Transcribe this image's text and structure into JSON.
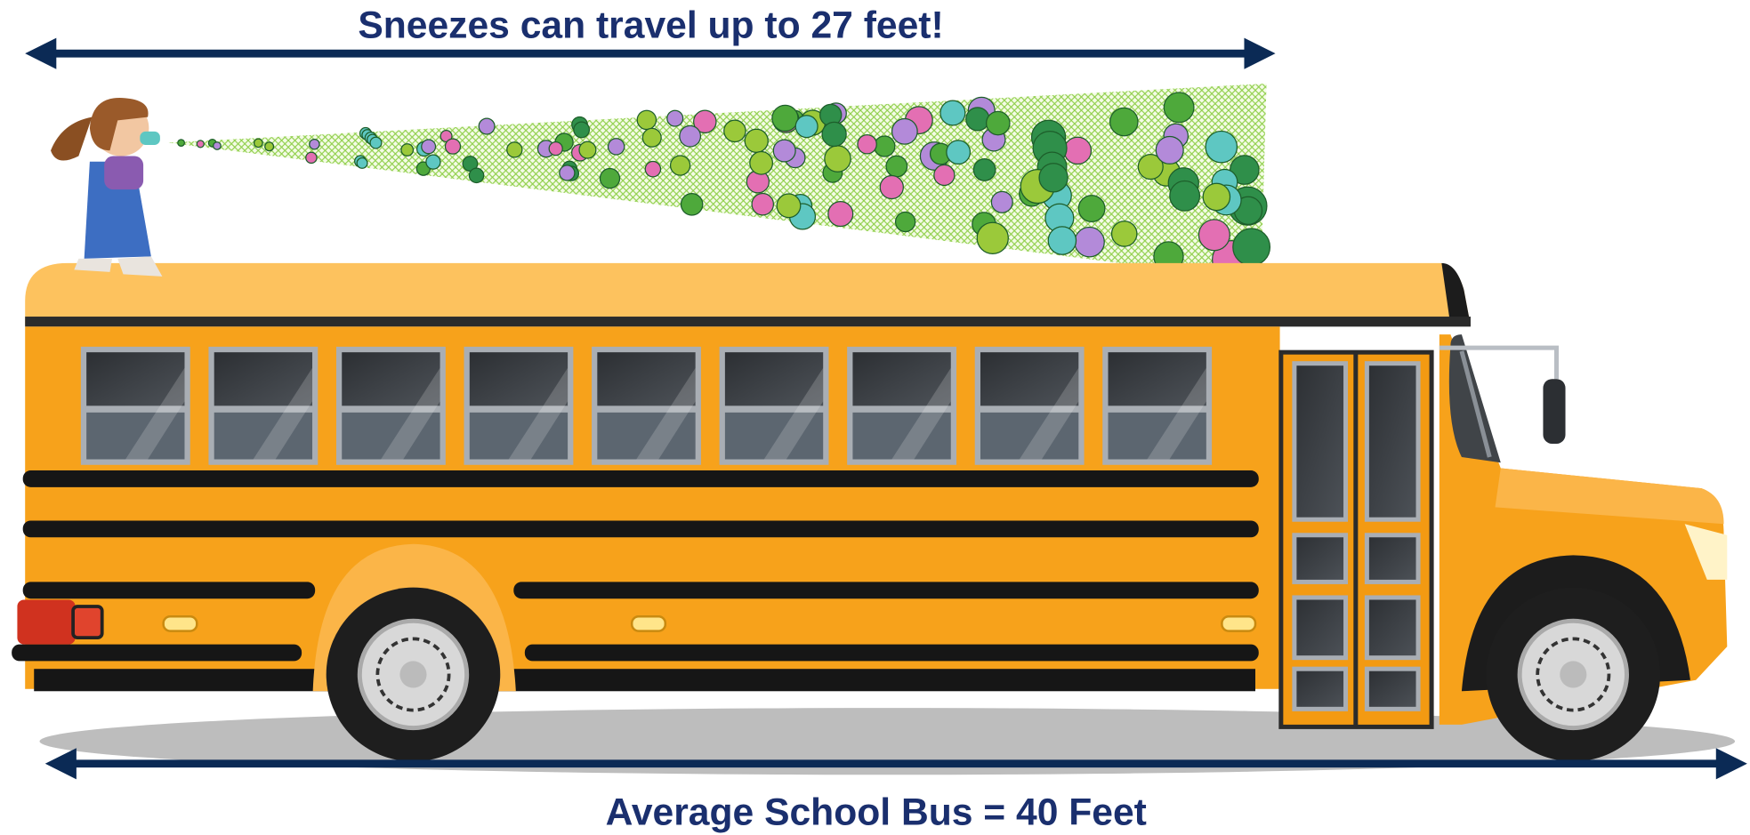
{
  "top_label": "Sneezes can travel up to 27 feet!",
  "bottom_label": "Average School Bus = 40 Feet"
}
